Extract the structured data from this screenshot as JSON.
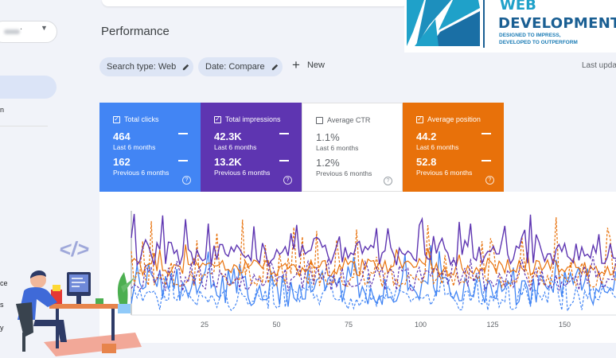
{
  "sidebar": {
    "property_suffix": ".",
    "fragments": [
      "n",
      "ce",
      "s",
      "y"
    ]
  },
  "page_title": "Performance",
  "filters": {
    "search_type": "Search type: Web",
    "date": "Date: Compare",
    "new_label": "New",
    "last_updated": "Last upda"
  },
  "metrics": [
    {
      "label": "Total clicks",
      "checked": true,
      "value": "464",
      "period": "Last 6 months",
      "prev_value": "162",
      "prev_period": "Previous 6 months",
      "color": "#4285f4"
    },
    {
      "label": "Total impressions",
      "checked": true,
      "value": "42.3K",
      "period": "Last 6 months",
      "prev_value": "13.2K",
      "prev_period": "Previous 6 months",
      "color": "#5e35b1"
    },
    {
      "label": "Average CTR",
      "checked": false,
      "value": "1.1%",
      "period": "Last 6 months",
      "prev_value": "1.2%",
      "prev_period": "Previous 6 months",
      "color": "#ffffff"
    },
    {
      "label": "Average position",
      "checked": true,
      "value": "44.2",
      "period": "Last 6 months",
      "prev_value": "52.8",
      "prev_period": "Previous 6 months",
      "color": "#e8710a"
    }
  ],
  "help_glyph": "?",
  "check_glyph": "✓",
  "chart": {
    "x_ticks": [
      "25",
      "50",
      "75",
      "100",
      "125",
      "150"
    ],
    "series_colors": {
      "clicks": "#4285f4",
      "impressions": "#5e35b1",
      "position": "#e8710a"
    }
  },
  "logo": {
    "line1": "WEB",
    "line2": "DEVELOPMENT",
    "tagline1": "DESIGNED TO IMPRESS,",
    "tagline2": "DEVELOPED TO OUTPERFORM",
    "colors": {
      "light": "#1fa1c9",
      "dark": "#1a5f93"
    }
  },
  "illustration": {
    "code_glyph": "</>"
  }
}
